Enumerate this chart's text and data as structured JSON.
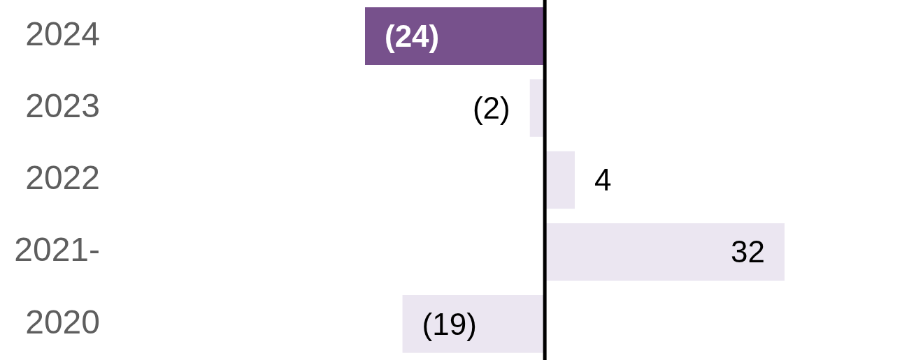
{
  "chart_data": {
    "type": "bar",
    "orientation": "horizontal",
    "categories": [
      "2024",
      "2023",
      "2022",
      "2021-",
      "2020"
    ],
    "values": [
      -24,
      -2,
      4,
      32,
      -19
    ],
    "colors": [
      "#77518c",
      "#ebe6f1",
      "#ebe6f1",
      "#ebe6f1",
      "#ebe6f1"
    ],
    "value_labels": [
      "(24)",
      "(2)",
      "4",
      "32",
      "(19)"
    ],
    "tick_labels": "y",
    "ref_lines": [
      {
        "axis": "x",
        "value": 0,
        "color": "#000000"
      }
    ]
  }
}
